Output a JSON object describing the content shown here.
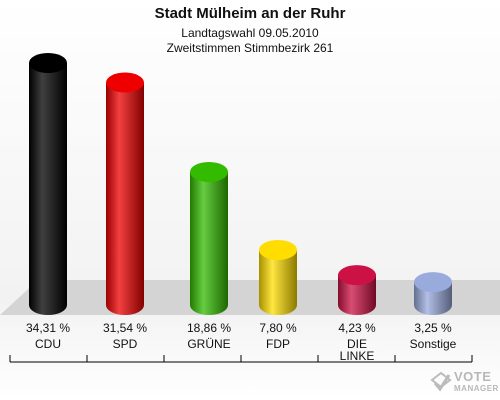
{
  "chart_data": {
    "type": "bar",
    "title": "Stadt Mülheim an der Ruhr",
    "subtitle_1": "Landtagswahl 09.05.2010",
    "subtitle_2": "Zweitstimmen Stimmbezirk 261",
    "categories": [
      "CDU",
      "SPD",
      "GRÜNE",
      "FDP",
      "DIE LINKE",
      "Sonstige"
    ],
    "values": [
      34.31,
      31.54,
      18.86,
      7.8,
      4.23,
      3.25
    ],
    "value_labels": [
      "34,31 %",
      "31,54 %",
      "18,86 %",
      "7,80 %",
      "4,23 %",
      "3,25 %"
    ],
    "colors": [
      "#000000",
      "#ee0000",
      "#33bb00",
      "#ffdd00",
      "#cc1144",
      "#99aadd"
    ],
    "ylim": [
      0,
      34.31
    ],
    "grid": false,
    "legend": "none"
  },
  "watermark": {
    "line1": "VOTE",
    "line2": "MANAGER"
  }
}
